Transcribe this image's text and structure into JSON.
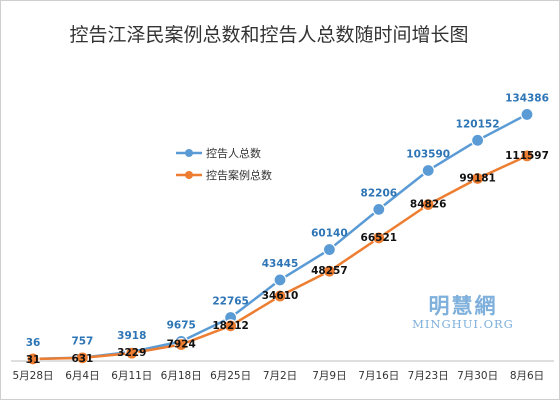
{
  "chart_data": {
    "type": "line",
    "title": "控告江泽民案例总数和控告人总数随时间增长图",
    "categories": [
      "5月28日",
      "6月4日",
      "6月11日",
      "6月18日",
      "6月25日",
      "7月2日",
      "7月9日",
      "7月16日",
      "7月23日",
      "7月30日",
      "8月6日"
    ],
    "series": [
      {
        "name": "控告人总数",
        "color": "#5b9bd5",
        "label_color": "#2e75b6",
        "values": [
          36,
          757,
          3918,
          9675,
          22765,
          43445,
          60140,
          82206,
          103590,
          120152,
          134386
        ]
      },
      {
        "name": "控告案例总数",
        "color": "#ed7d31",
        "label_color": "#111111",
        "values": [
          31,
          631,
          3229,
          7924,
          18212,
          34610,
          48257,
          66521,
          84826,
          99181,
          111597
        ]
      }
    ],
    "ylim": [
      0,
      140000
    ],
    "grid": false,
    "legend_position": "left-center",
    "data_labels": true
  },
  "watermark": {
    "chinese": "明慧網",
    "english": "MINGHUI.ORG"
  }
}
